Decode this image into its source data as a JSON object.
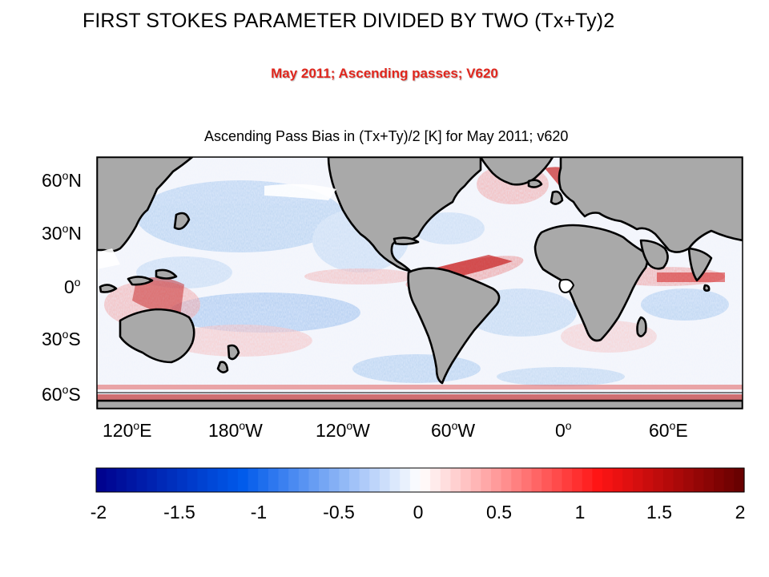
{
  "slide": {
    "title": "FIRST STOKES PARAMETER DIVIDED BY TWO (Tx+Ty)2",
    "subtitle": "May 2011; Ascending passes; V620"
  },
  "map": {
    "title": "Ascending Pass Bias in (Tx+Ty)/2 [K] for May 2011; v620",
    "lat_ticks": [
      {
        "value": "60",
        "hemisphere": "N"
      },
      {
        "value": "30",
        "hemisphere": "N"
      },
      {
        "value": "0",
        "hemisphere": ""
      },
      {
        "value": "30",
        "hemisphere": "S"
      },
      {
        "value": "60",
        "hemisphere": "S"
      }
    ],
    "lon_ticks": [
      {
        "value": "120",
        "hemisphere": "E"
      },
      {
        "value": "180",
        "hemisphere": "W"
      },
      {
        "value": "120",
        "hemisphere": "W"
      },
      {
        "value": "60",
        "hemisphere": "W"
      },
      {
        "value": "0",
        "hemisphere": ""
      },
      {
        "value": "60",
        "hemisphere": "E"
      }
    ],
    "degree_symbol": "o",
    "land_color": "#a9a9a9",
    "ocean_neutral": "#f6f6fb",
    "coast_color": "#000000"
  },
  "colorbar": {
    "ticks": [
      "-2",
      "-1.5",
      "-1",
      "-0.5",
      "0",
      "0.5",
      "1",
      "1.5",
      "2"
    ],
    "min": -2,
    "max": 2,
    "low_color": "#00008c",
    "high_color": "#640000"
  },
  "chart_data": {
    "type": "heatmap",
    "title": "Ascending Pass Bias in (Tx+Ty)/2 [K] for May 2011; v620",
    "xlabel": "",
    "ylabel": "",
    "x_ticks": [
      "120°E",
      "180°W",
      "120°W",
      "60°W",
      "0°",
      "60°E"
    ],
    "y_ticks": [
      "60°N",
      "30°N",
      "0°",
      "30°S",
      "60°S"
    ],
    "colorbar_range": [
      -2,
      2
    ],
    "colorbar_ticks": [
      -2,
      -1.5,
      -1,
      -0.5,
      0,
      0.5,
      1,
      1.5,
      2
    ],
    "colormap": "blue-white-red"
  }
}
